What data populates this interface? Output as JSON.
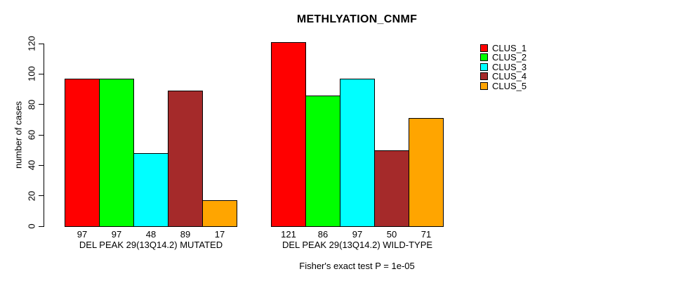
{
  "title": "METHLYATION_CNMF",
  "chart_data": {
    "type": "bar",
    "title": "METHLYATION_CNMF",
    "xlabel": "",
    "ylabel": "number of cases",
    "ylim": [
      0,
      120
    ],
    "yticks": [
      0,
      20,
      40,
      60,
      80,
      100,
      120
    ],
    "grid": false,
    "legend_position": "top-right",
    "categories": [
      "DEL PEAK 29(13Q14.2) MUTATED",
      "DEL PEAK 29(13Q14.2) WILD-TYPE"
    ],
    "series": [
      {
        "name": "CLUS_1",
        "color": "#FF0000",
        "values": [
          97,
          121
        ]
      },
      {
        "name": "CLUS_2",
        "color": "#00FF00",
        "values": [
          97,
          86
        ]
      },
      {
        "name": "CLUS_3",
        "color": "#00FFFF",
        "values": [
          48,
          97
        ]
      },
      {
        "name": "CLUS_4",
        "color": "#A52A2A",
        "values": [
          89,
          50
        ]
      },
      {
        "name": "CLUS_5",
        "color": "#FFA500",
        "values": [
          17,
          71
        ]
      }
    ],
    "bar_value_labels": [
      [
        97,
        97,
        48,
        89,
        17
      ],
      [
        121,
        86,
        97,
        50,
        71
      ]
    ],
    "annotation": "Fisher's exact test P = 1e-05",
    "colors": {
      "axis": "#000000",
      "background": "#FFFFFF"
    }
  }
}
